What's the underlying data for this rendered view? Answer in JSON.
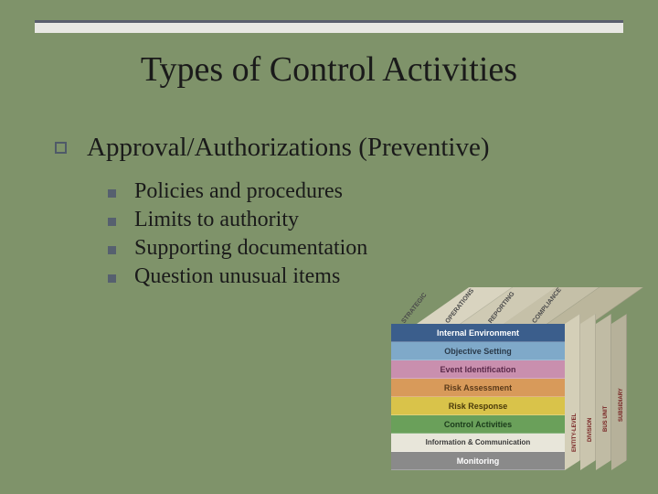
{
  "slide": {
    "title": "Types of Control Activities",
    "background_color": "#7f936a",
    "title_fontsize": 38,
    "title_color": "#1a1a1a",
    "topbar": {
      "bar_color": "#e8e8e3",
      "line_color": "#5a5f6d"
    },
    "level1": {
      "text": "Approval/Authorizations (Preventive)",
      "fontsize": 29,
      "bullet_border_color": "#4f5a68"
    },
    "level2": {
      "fontsize": 24,
      "bullet_fill_color": "#56606f",
      "items": [
        "Policies and procedures",
        "Limits to authority",
        "Supporting documentation",
        "Question unusual items"
      ]
    }
  },
  "cube": {
    "type": "infographic",
    "front_rows": [
      {
        "label": "Internal Environment",
        "bg": "#3b5e8c",
        "color": "#ffffff",
        "fontsize": 9
      },
      {
        "label": "Objective Setting",
        "bg": "#7fa9c9",
        "color": "#2a3a4a",
        "fontsize": 9
      },
      {
        "label": "Event Identification",
        "bg": "#c98fae",
        "color": "#5a2a4a",
        "fontsize": 9
      },
      {
        "label": "Risk Assessment",
        "bg": "#d89a5a",
        "color": "#5a3a1a",
        "fontsize": 9
      },
      {
        "label": "Risk Response",
        "bg": "#d9c34a",
        "color": "#4a3a0a",
        "fontsize": 9
      },
      {
        "label": "Control Activities",
        "bg": "#6aa05a",
        "color": "#1a3a1a",
        "fontsize": 9
      },
      {
        "label": "Information & Communication",
        "bg": "#e8e6da",
        "color": "#3a3a3a",
        "fontsize": 8
      },
      {
        "label": "Monitoring",
        "bg": "#8a8a8a",
        "color": "#ffffff",
        "fontsize": 9
      }
    ],
    "top_labels": [
      "STRATEGIC",
      "OPERATIONS",
      "REPORTING",
      "COMPLIANCE"
    ],
    "top_colors": [
      "#d9d4c0",
      "#cfcab4",
      "#c5c0a8",
      "#bbb69c"
    ],
    "side_labels": [
      "ENTITY-LEVEL",
      "DIVISION",
      "BUS UNIT",
      "SUBSIDIARY"
    ],
    "side_colors": [
      "#d4cfb8",
      "#cac5ae",
      "#c0bba4",
      "#b6b19a"
    ]
  }
}
